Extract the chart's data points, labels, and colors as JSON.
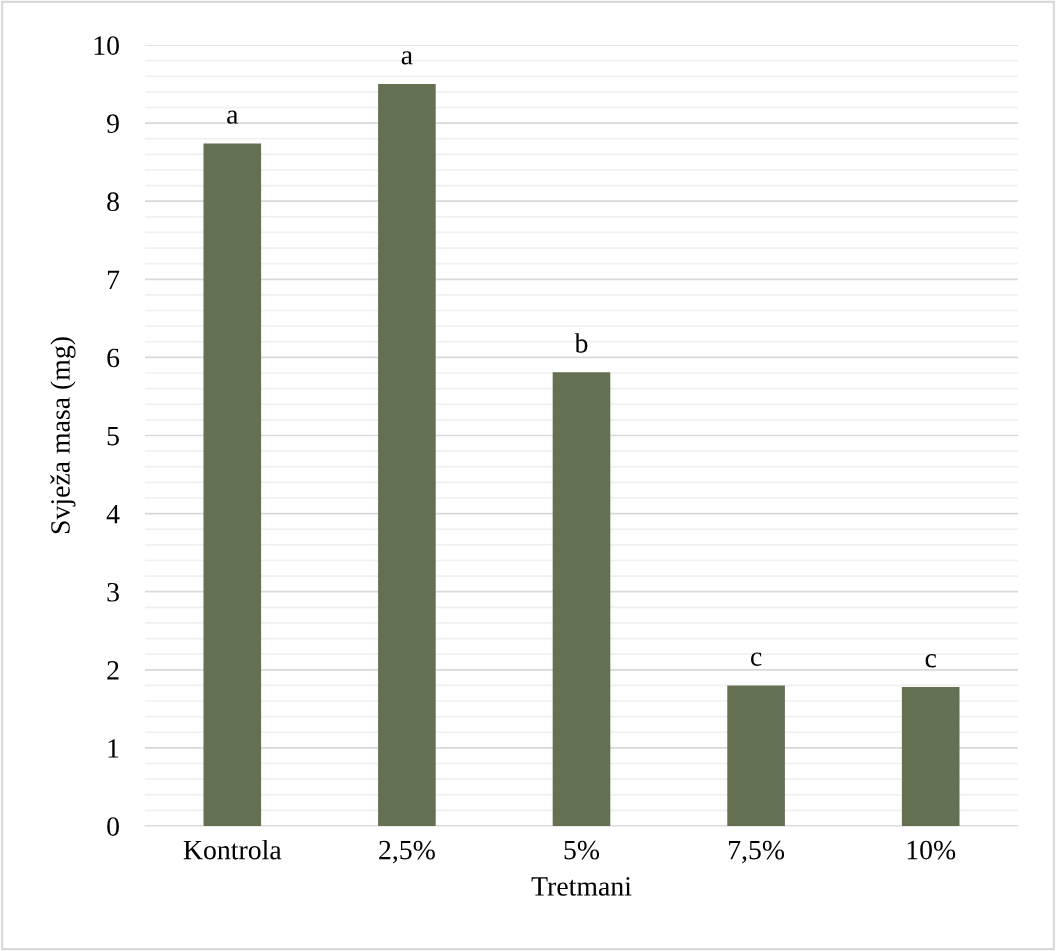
{
  "chart_data": {
    "type": "bar",
    "xlabel": "Tretmani",
    "ylabel": "Svježa masa (mg)",
    "categories": [
      "Kontrola",
      "2,5%",
      "5%",
      "7,5%",
      "10%"
    ],
    "values": [
      8.74,
      9.5,
      5.81,
      1.8,
      1.78
    ],
    "color": "#637052",
    "ylim": [
      0,
      10
    ],
    "yticks": [
      0,
      1,
      2,
      3,
      4,
      5,
      6,
      7,
      8,
      9,
      10
    ],
    "grid": "y",
    "annotations": [
      {
        "text": "a",
        "x": "Kontrola",
        "y": 8.74
      },
      {
        "text": "a",
        "x": "2,5%",
        "y": 9.5
      },
      {
        "text": "b",
        "x": "5%",
        "y": 5.81
      },
      {
        "text": "c",
        "x": "7,5%",
        "y": 1.8
      },
      {
        "text": "c",
        "x": "10%",
        "y": 1.78
      }
    ]
  }
}
